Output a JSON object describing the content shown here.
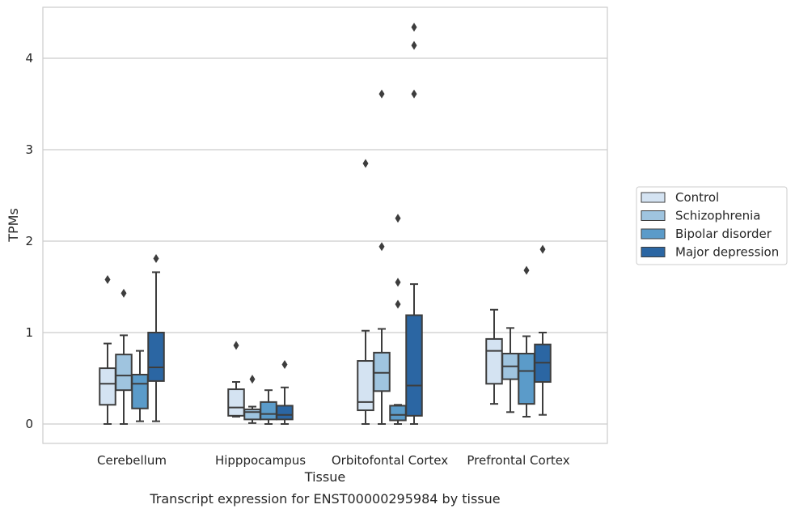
{
  "chart_data": {
    "type": "box",
    "title": "",
    "caption": "Transcript expression for ENST00000295984 by tissue",
    "xlabel": "Tissue",
    "ylabel": "TPMs",
    "ylim": [
      -0.2,
      4.55
    ],
    "yticks": [
      0,
      1,
      2,
      3,
      4
    ],
    "grid": "horizontal",
    "legend_position": "right",
    "categories": [
      "Cerebellum",
      "Hipppocampus",
      "Orbitofontal Cortex",
      "Prefrontal Cortex"
    ],
    "series": [
      {
        "name": "Control",
        "color": "#d4e3f2",
        "boxes": [
          {
            "whislo": 0.0,
            "q1": 0.21,
            "med": 0.44,
            "q3": 0.61,
            "whishi": 0.88,
            "fliers": [
              1.58
            ]
          },
          {
            "whislo": 0.08,
            "q1": 0.09,
            "med": 0.18,
            "q3": 0.38,
            "whishi": 0.46,
            "fliers": [
              0.86
            ]
          },
          {
            "whislo": 0.0,
            "q1": 0.15,
            "med": 0.24,
            "q3": 0.69,
            "whishi": 1.02,
            "fliers": [
              2.85
            ]
          },
          {
            "whislo": 0.22,
            "q1": 0.44,
            "med": 0.8,
            "q3": 0.93,
            "whishi": 1.25,
            "fliers": []
          }
        ]
      },
      {
        "name": "Schizophrenia",
        "color": "#9fc4df",
        "boxes": [
          {
            "whislo": 0.0,
            "q1": 0.37,
            "med": 0.53,
            "q3": 0.76,
            "whishi": 0.97,
            "fliers": [
              1.43
            ]
          },
          {
            "whislo": 0.01,
            "q1": 0.05,
            "med": 0.13,
            "q3": 0.16,
            "whishi": 0.19,
            "fliers": [
              0.49
            ]
          },
          {
            "whislo": 0.0,
            "q1": 0.36,
            "med": 0.56,
            "q3": 0.78,
            "whishi": 1.04,
            "fliers": [
              1.94,
              3.61
            ]
          },
          {
            "whislo": 0.13,
            "q1": 0.49,
            "med": 0.63,
            "q3": 0.77,
            "whishi": 1.05,
            "fliers": []
          }
        ]
      },
      {
        "name": "Bipolar disorder",
        "color": "#5b9bc9",
        "boxes": [
          {
            "whislo": 0.03,
            "q1": 0.17,
            "med": 0.44,
            "q3": 0.54,
            "whishi": 0.8,
            "fliers": []
          },
          {
            "whislo": 0.0,
            "q1": 0.05,
            "med": 0.11,
            "q3": 0.24,
            "whishi": 0.37,
            "fliers": []
          },
          {
            "whislo": 0.0,
            "q1": 0.04,
            "med": 0.1,
            "q3": 0.2,
            "whishi": 0.21,
            "fliers": [
              1.31,
              1.55,
              2.25
            ]
          },
          {
            "whislo": 0.08,
            "q1": 0.22,
            "med": 0.58,
            "q3": 0.77,
            "whishi": 0.96,
            "fliers": [
              1.68
            ]
          }
        ]
      },
      {
        "name": "Major depression",
        "color": "#2b66a3",
        "boxes": [
          {
            "whislo": 0.03,
            "q1": 0.47,
            "med": 0.62,
            "q3": 1.0,
            "whishi": 1.66,
            "fliers": [
              1.81
            ]
          },
          {
            "whislo": 0.0,
            "q1": 0.05,
            "med": 0.1,
            "q3": 0.2,
            "whishi": 0.4,
            "fliers": [
              0.65
            ]
          },
          {
            "whislo": 0.0,
            "q1": 0.09,
            "med": 0.42,
            "q3": 1.19,
            "whishi": 1.53,
            "fliers": [
              3.61,
              4.14,
              4.34
            ]
          },
          {
            "whislo": 0.1,
            "q1": 0.46,
            "med": 0.67,
            "q3": 0.87,
            "whishi": 1.0,
            "fliers": [
              1.91
            ]
          }
        ]
      }
    ]
  }
}
